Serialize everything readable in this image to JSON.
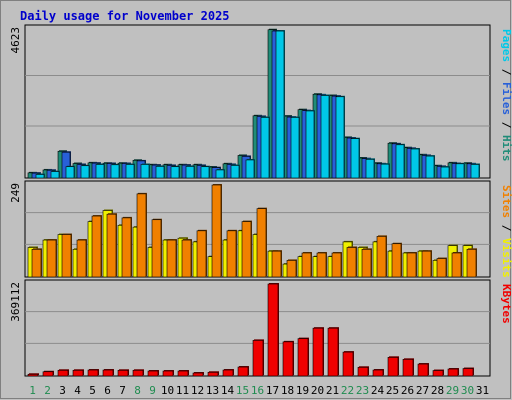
{
  "chart_data": {
    "type": "bar",
    "title": "Daily usage for November 2025",
    "categories": [
      "1",
      "2",
      "3",
      "4",
      "5",
      "6",
      "7",
      "8",
      "9",
      "10",
      "11",
      "12",
      "13",
      "14",
      "15",
      "16",
      "17",
      "18",
      "19",
      "20",
      "21",
      "22",
      "23",
      "24",
      "25",
      "26",
      "27",
      "28",
      "29",
      "30",
      "31"
    ],
    "weekend_days": [
      "1",
      "2",
      "8",
      "9",
      "15",
      "16",
      "22",
      "23",
      "29",
      "30"
    ],
    "panels": [
      {
        "name": "hits-files-pages",
        "ymax_label": "4623",
        "ymax": 4623,
        "right_label_parts": [
          {
            "text": "Pages",
            "color": "#00c8e8"
          },
          {
            "text": " / ",
            "color": "#000000"
          },
          {
            "text": "Files",
            "color": "#2860d8"
          },
          {
            "text": " / ",
            "color": "#000000"
          },
          {
            "text": "Hits",
            "color": "#208c78"
          }
        ],
        "series": [
          {
            "name": "Hits",
            "color": "#208c78",
            "values": [
              160,
              250,
              830,
              450,
              470,
              460,
              460,
              550,
              410,
              410,
              410,
              410,
              340,
              440,
              700,
              1930,
              4600,
              1920,
              2120,
              2600,
              2560,
              1260,
              620,
              460,
              1080,
              940,
              720,
              380,
              470,
              460,
              0
            ]
          },
          {
            "name": "Files",
            "color": "#2860d8",
            "values": [
              150,
              240,
              800,
              420,
              460,
              450,
              450,
              530,
              400,
              390,
              400,
              390,
              320,
              420,
              670,
              1910,
              4560,
              1890,
              2090,
              2580,
              2540,
              1240,
              600,
              440,
              1060,
              920,
              700,
              360,
              450,
              440,
              0
            ]
          },
          {
            "name": "Pages",
            "color": "#00c8e8",
            "values": [
              110,
              200,
              350,
              380,
              420,
              410,
              420,
              420,
              360,
              350,
              360,
              350,
              250,
              390,
              560,
              1880,
              4560,
              1880,
              2080,
              2560,
              2520,
              1220,
              580,
              430,
              1030,
              900,
              680,
              340,
              440,
              420,
              0
            ]
          }
        ]
      },
      {
        "name": "visits-sites",
        "ymax_label": "249",
        "ymax": 249,
        "right_label_parts": [
          {
            "text": "Sites",
            "color": "#f08000"
          },
          {
            "text": " / ",
            "color": "#000000"
          },
          {
            "text": "Visits",
            "color": "#f0f000"
          }
        ],
        "series": [
          {
            "name": "Visits",
            "color": "#f0f000",
            "values": [
              80,
              100,
              115,
              75,
              150,
              180,
              140,
              135,
              80,
              100,
              105,
              95,
              55,
              100,
              125,
              115,
              70,
              35,
              55,
              55,
              55,
              95,
              80,
              95,
              70,
              65,
              70,
              45,
              85,
              85,
              0
            ]
          },
          {
            "name": "Sites",
            "color": "#f08000",
            "values": [
              75,
              100,
              115,
              100,
              165,
              170,
              160,
              225,
              155,
              100,
              100,
              125,
              249,
              125,
              150,
              185,
              70,
              45,
              65,
              65,
              65,
              80,
              75,
              110,
              90,
              65,
              70,
              50,
              65,
              75,
              0
            ]
          }
        ]
      },
      {
        "name": "kbytes",
        "ymax_label": "369112",
        "ymax": 369112,
        "right_label_parts": [
          {
            "text": "KBytes",
            "color": "#f00000"
          }
        ],
        "series": [
          {
            "name": "KBytes",
            "color": "#f00000",
            "values": [
              7000,
              17000,
              23000,
              23000,
              24000,
              24000,
              23000,
              23000,
              20000,
              20000,
              20000,
              12000,
              15000,
              24000,
              36000,
              143000,
              369112,
              137000,
              150000,
              192000,
              192000,
              96000,
              35000,
              24000,
              75000,
              67000,
              48000,
              22000,
              28000,
              30000,
              0
            ]
          }
        ]
      }
    ]
  }
}
